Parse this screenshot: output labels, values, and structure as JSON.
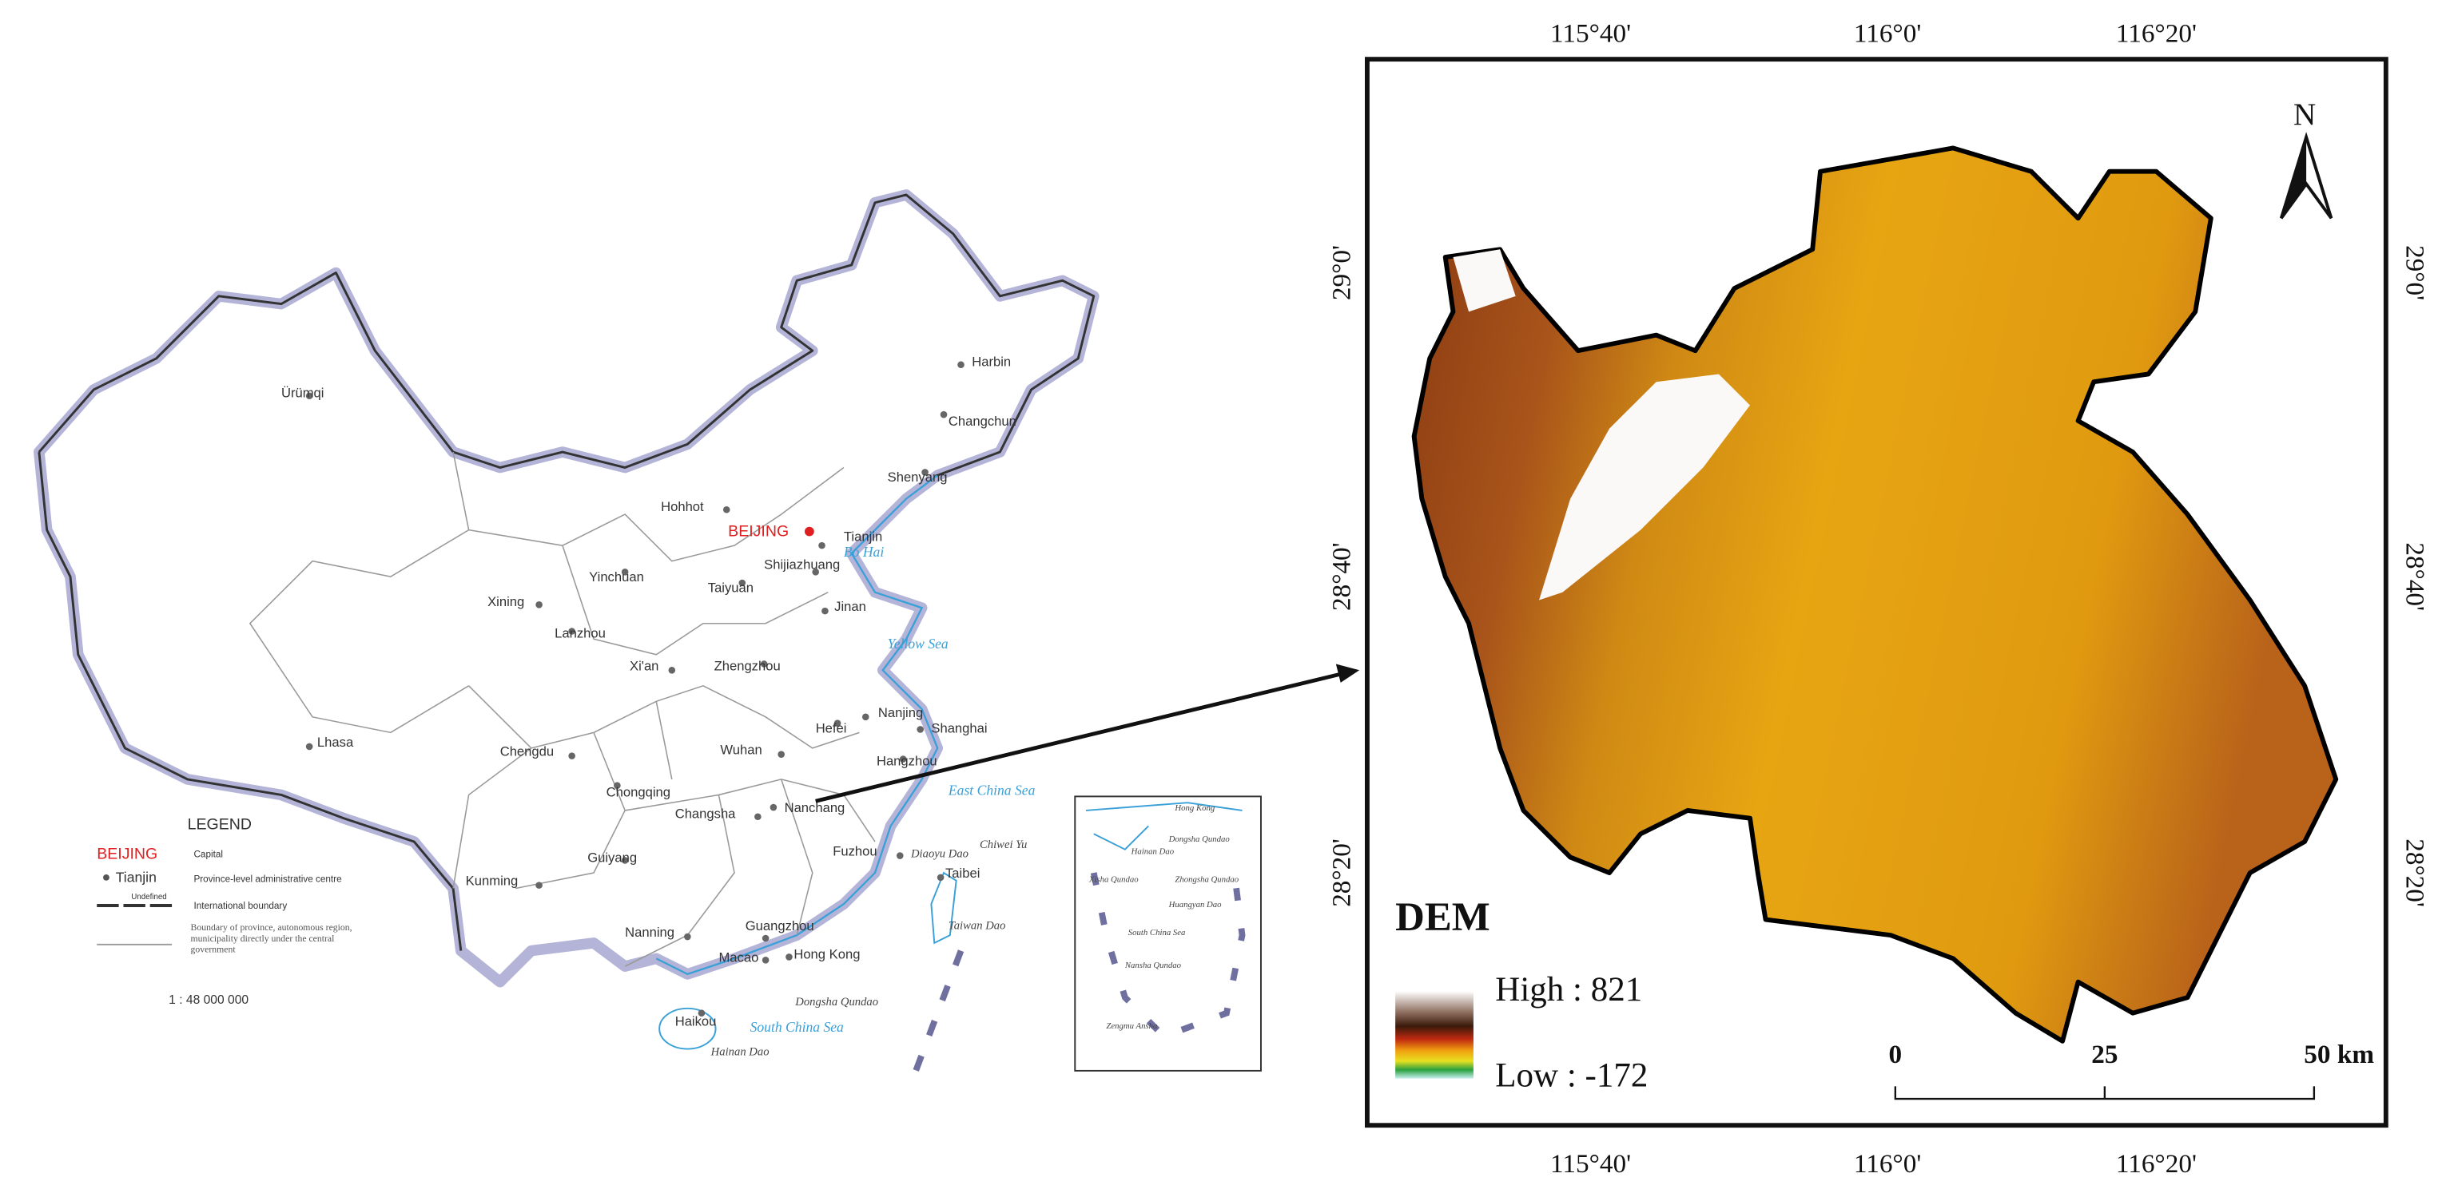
{
  "china_map": {
    "capital": "BEIJING",
    "cities": [
      "Ürümqi",
      "Harbin",
      "Changchun",
      "Shenyang",
      "Hohhot",
      "Tianjin",
      "Yinchuan",
      "Shijiazhuang",
      "Taiyuan",
      "Xining",
      "Jinan",
      "Lanzhou",
      "Xi'an",
      "Zhengzhou",
      "Nanjing",
      "Shanghai",
      "Hefei",
      "Wuhan",
      "Hangzhou",
      "Lhasa",
      "Chengdu",
      "Chongqing",
      "Changsha",
      "Nanchang",
      "Fuzhou",
      "Guiyang",
      "Kunming",
      "Taibei",
      "Nanning",
      "Guangzhou",
      "Hong Kong",
      "Macao",
      "Haikou"
    ],
    "seas": [
      "Bo Hai",
      "Yellow Sea",
      "East China Sea",
      "South China Sea"
    ],
    "islands": [
      "Diaoyu Dao",
      "Chiwei Yu",
      "Taiwan Dao",
      "Dongsha Qundao",
      "Hainan Dao"
    ],
    "inset_labels": [
      "Hong Kong",
      "Hainan Dao",
      "Dongsha Qundao",
      "Xisha Qundao",
      "Zhongsha Qundao",
      "Huangyan Dao",
      "South China Sea",
      "Nansha Qundao",
      "Zengmu Ansha"
    ],
    "legend": {
      "title": "LEGEND",
      "capital_symbol": "BEIJING",
      "capital_text": "Capital",
      "centre_symbol": "Tianjin",
      "centre_text": "Province-level administrative centre",
      "undefined_text": "Undefined",
      "intl_text": "International boundary",
      "province_text": "Boundary of province, autonomous region, municipality directly under the central government",
      "scale": "1 : 48 000 000"
    }
  },
  "dem_map": {
    "title": "DEM",
    "north": "N",
    "longitude_labels": [
      "115°40'",
      "116°0'",
      "116°20'"
    ],
    "latitude_labels": [
      "29°0'",
      "28°40'",
      "28°20'"
    ],
    "legend": {
      "high": "High : 821",
      "low": "Low : -172"
    },
    "scale_bar": [
      "0",
      "25",
      "50 km"
    ]
  }
}
